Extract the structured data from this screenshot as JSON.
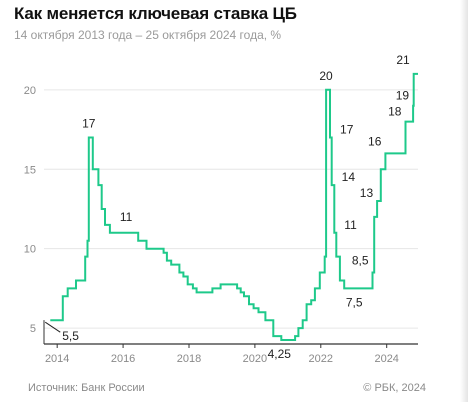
{
  "title": "Как меняется ключевая ставка ЦБ",
  "subtitle": "14 октября 2013 года – 25 октября 2024 года, %",
  "source": "Источник: Банк России",
  "copyright": "© РБК, 2024",
  "colors": {
    "line": "#1ec98a",
    "grid": "#e6e6e6",
    "axis": "#333333",
    "tick": "#8a8a8a",
    "label": "#222222"
  },
  "chart_data": {
    "type": "line",
    "xlim": [
      2013.6,
      2024.95
    ],
    "ylim": [
      4,
      21.5
    ],
    "y_ticks": [
      5,
      10,
      15,
      20
    ],
    "x_ticks": [
      {
        "x": 2014,
        "label": "2014"
      },
      {
        "x": 2016,
        "label": "2016"
      },
      {
        "x": 2018,
        "label": "2018"
      },
      {
        "x": 2020,
        "label": "2020"
      },
      {
        "x": 2022,
        "label": "2022"
      },
      {
        "x": 2024,
        "label": "2024"
      }
    ],
    "grid": true,
    "step": true,
    "points": [
      [
        2013.79,
        5.5
      ],
      [
        2014.17,
        7.0
      ],
      [
        2014.32,
        7.5
      ],
      [
        2014.57,
        8.0
      ],
      [
        2014.85,
        9.5
      ],
      [
        2014.92,
        10.5
      ],
      [
        2014.96,
        17.0
      ],
      [
        2015.08,
        15.0
      ],
      [
        2015.25,
        14.0
      ],
      [
        2015.35,
        12.5
      ],
      [
        2015.45,
        11.5
      ],
      [
        2015.6,
        11.0
      ],
      [
        2016.46,
        10.5
      ],
      [
        2016.71,
        10.0
      ],
      [
        2017.23,
        9.75
      ],
      [
        2017.33,
        9.25
      ],
      [
        2017.46,
        9.0
      ],
      [
        2017.71,
        8.5
      ],
      [
        2017.83,
        8.25
      ],
      [
        2017.96,
        7.75
      ],
      [
        2018.12,
        7.5
      ],
      [
        2018.23,
        7.25
      ],
      [
        2018.71,
        7.5
      ],
      [
        2018.96,
        7.75
      ],
      [
        2019.46,
        7.5
      ],
      [
        2019.57,
        7.25
      ],
      [
        2019.67,
        7.0
      ],
      [
        2019.82,
        6.5
      ],
      [
        2019.96,
        6.25
      ],
      [
        2020.11,
        6.0
      ],
      [
        2020.32,
        5.5
      ],
      [
        2020.56,
        4.5
      ],
      [
        2020.8,
        4.25
      ],
      [
        2021.22,
        4.5
      ],
      [
        2021.32,
        5.0
      ],
      [
        2021.45,
        5.5
      ],
      [
        2021.57,
        6.5
      ],
      [
        2021.71,
        6.75
      ],
      [
        2021.82,
        7.5
      ],
      [
        2021.97,
        8.5
      ],
      [
        2022.12,
        9.5
      ],
      [
        2022.16,
        20.0
      ],
      [
        2022.28,
        17.0
      ],
      [
        2022.33,
        14.0
      ],
      [
        2022.41,
        11.0
      ],
      [
        2022.47,
        9.5
      ],
      [
        2022.58,
        8.0
      ],
      [
        2022.71,
        7.5
      ],
      [
        2023.57,
        8.5
      ],
      [
        2023.62,
        12.0
      ],
      [
        2023.71,
        13.0
      ],
      [
        2023.82,
        15.0
      ],
      [
        2023.96,
        16.0
      ],
      [
        2024.57,
        18.0
      ],
      [
        2024.8,
        19.0
      ],
      [
        2024.82,
        21.0
      ],
      [
        2024.95,
        21.0
      ]
    ],
    "annotations": [
      {
        "x": 2013.79,
        "y": 5.5,
        "label": "5,5"
      },
      {
        "x": 2014.96,
        "y": 17.0,
        "label": "17"
      },
      {
        "x": 2015.6,
        "y": 11.0,
        "label": "11"
      },
      {
        "x": 2020.8,
        "y": 4.25,
        "label": "4,25"
      },
      {
        "x": 2022.16,
        "y": 20.0,
        "label": "20"
      },
      {
        "x": 2022.28,
        "y": 17.0,
        "label": "17"
      },
      {
        "x": 2022.33,
        "y": 14.0,
        "label": "14"
      },
      {
        "x": 2022.41,
        "y": 11.0,
        "label": "11"
      },
      {
        "x": 2022.71,
        "y": 7.5,
        "label": "7,5"
      },
      {
        "x": 2023.57,
        "y": 8.5,
        "label": "8,5"
      },
      {
        "x": 2023.71,
        "y": 13.0,
        "label": "13"
      },
      {
        "x": 2023.96,
        "y": 16.0,
        "label": "16"
      },
      {
        "x": 2024.57,
        "y": 18.0,
        "label": "18"
      },
      {
        "x": 2024.8,
        "y": 19.0,
        "label": "19"
      },
      {
        "x": 2024.82,
        "y": 21.0,
        "label": "21"
      }
    ]
  }
}
